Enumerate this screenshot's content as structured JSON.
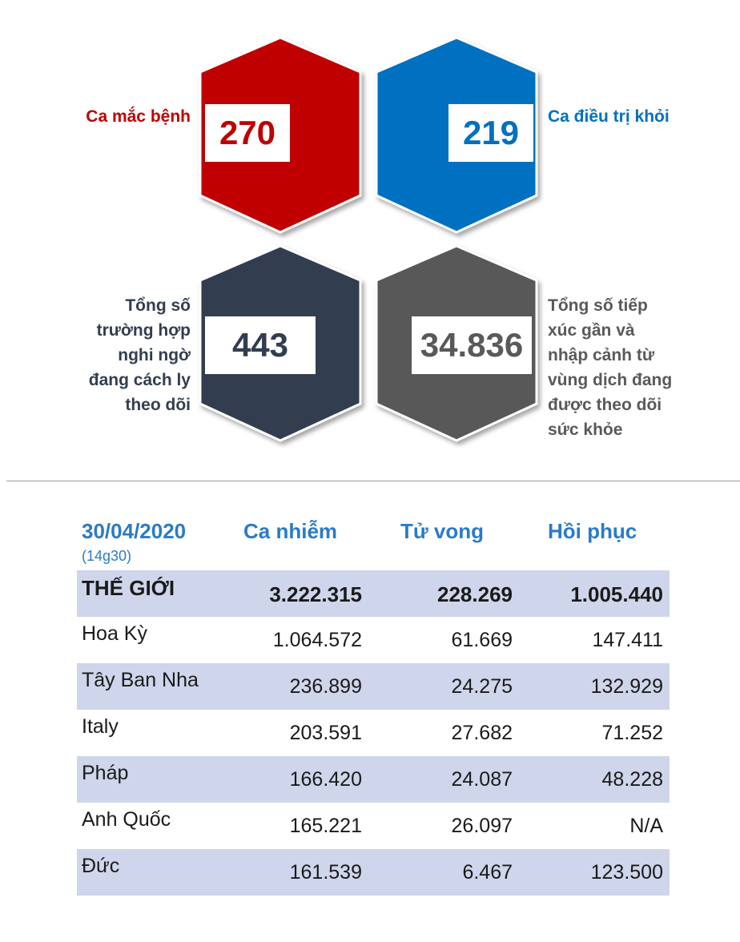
{
  "stats": {
    "cases": {
      "label": "Ca mắc bệnh",
      "value": "270",
      "color": "#c00000"
    },
    "recovered": {
      "label": "Ca điều trị khỏi",
      "value": "219",
      "color": "#0070c0"
    },
    "isolated": {
      "label_lines": [
        "Tổng số",
        "trường hợp",
        "nghi ngờ",
        "đang cách ly",
        "theo dõi"
      ],
      "value": "443",
      "color": "#323e50"
    },
    "monitored": {
      "label_lines": [
        "Tổng số tiếp",
        "xúc gần và",
        "nhập cảnh từ",
        "vùng dịch đang",
        "được theo dõi",
        "sức khỏe"
      ],
      "value": "34.836",
      "color": "#595959"
    }
  },
  "table": {
    "date": "30/04/2020",
    "time": "(14g30)",
    "headers": [
      "Ca nhiễm",
      "Tử vong",
      "Hồi phục"
    ],
    "rows": [
      {
        "name": "THẾ GIỚI",
        "cases": "3.222.315",
        "deaths": "228.269",
        "recovered": "1.005.440"
      },
      {
        "name": "Hoa Kỳ",
        "cases": "1.064.572",
        "deaths": "61.669",
        "recovered": "147.411"
      },
      {
        "name": "Tây Ban Nha",
        "cases": "236.899",
        "deaths": "24.275",
        "recovered": "132.929"
      },
      {
        "name": "Italy",
        "cases": "203.591",
        "deaths": "27.682",
        "recovered": "71.252"
      },
      {
        "name": "Pháp",
        "cases": "166.420",
        "deaths": "24.087",
        "recovered": "48.228"
      },
      {
        "name": "Anh Quốc",
        "cases": "165.221",
        "deaths": "26.097",
        "recovered": "N/A"
      },
      {
        "name": "Đức",
        "cases": "161.539",
        "deaths": "6.467",
        "recovered": "123.500"
      }
    ]
  }
}
